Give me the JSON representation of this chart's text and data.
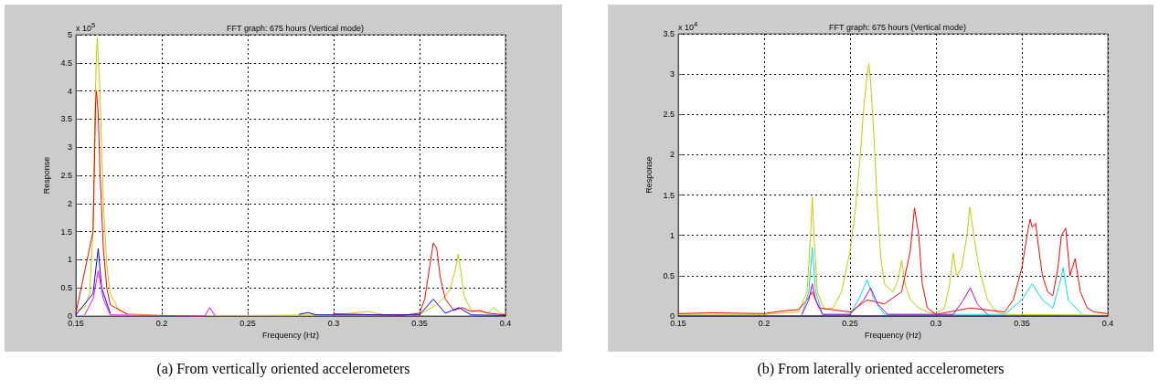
{
  "chart_data": [
    {
      "type": "line",
      "title": "FFT graph: 675 hours (Vertical mode)",
      "xlabel": "Frequency (Hz)",
      "ylabel": "Response",
      "annotations": [
        "x 10$^{5}$",
        "(a) From vertically oriented accelerometers"
      ],
      "xlim": [
        0.15,
        0.4
      ],
      "xticks": [
        0.15,
        0.2,
        0.25,
        0.3,
        0.35,
        0.4
      ],
      "ylim": [
        0,
        5
      ],
      "yticks": [
        0,
        0.5,
        1,
        1.5,
        2,
        2.5,
        3,
        3.5,
        4,
        4.5,
        5
      ],
      "grid": true,
      "marker": "none",
      "line_style": "solid",
      "series": [
        {
          "color": "#c8c800",
          "x": [
            0.15,
            0.155,
            0.158,
            0.16,
            0.161,
            0.162,
            0.1625,
            0.163,
            0.164,
            0.165,
            0.166,
            0.168,
            0.17,
            0.175,
            0.18,
            0.2,
            0.25,
            0.3,
            0.32,
            0.33,
            0.35,
            0.36,
            0.365,
            0.368,
            0.371,
            0.3725,
            0.374,
            0.376,
            0.38,
            0.39,
            0.393,
            0.397,
            0.4
          ],
          "values": [
            0.1,
            0.15,
            0.4,
            1.5,
            3.5,
            4.7,
            4.95,
            4.6,
            4,
            3,
            2,
            0.9,
            0.4,
            0.1,
            0.04,
            0.01,
            0.01,
            0.02,
            0.08,
            0.02,
            0.03,
            0.2,
            0.35,
            0.5,
            0.85,
            1.1,
            0.8,
            0.35,
            0.1,
            0.05,
            0.15,
            0.05,
            0.03
          ]
        },
        {
          "color": "#ff0000",
          "x": [
            0.15,
            0.16,
            0.161,
            0.1615,
            0.162,
            0.163,
            0.164,
            0.166,
            0.168,
            0.17,
            0.18,
            0.2,
            0.3,
            0.34,
            0.35,
            0.353,
            0.356,
            0.358,
            0.36,
            0.362,
            0.365,
            0.37,
            0.375,
            0.38,
            0.385,
            0.39,
            0.4
          ],
          "values": [
            0.05,
            1.5,
            3,
            3.8,
            4,
            3.6,
            2.6,
            1.2,
            0.5,
            0.2,
            0.03,
            null,
            0.04,
            0.01,
            0.05,
            0.3,
            0.9,
            1.3,
            1.2,
            0.7,
            0.3,
            0.1,
            0.15,
            0.08,
            0.1,
            0.05,
            0.02
          ]
        },
        {
          "color": "#0000ff",
          "x": [
            0.15,
            0.16,
            0.163,
            0.165,
            0.17,
            0.2,
            0.28,
            0.285,
            0.29,
            0.35,
            0.358,
            0.365,
            0.373,
            0.38,
            0.4
          ],
          "values": [
            0.02,
            0.4,
            1.2,
            0.5,
            0.05,
            null,
            0.03,
            0.06,
            0.02,
            0.02,
            0.3,
            0.05,
            0.15,
            0.02,
            0.01
          ]
        },
        {
          "color": "#ff00ff",
          "x": [
            0.155,
            0.16,
            0.163,
            0.166,
            0.17,
            0.225,
            0.228,
            0.231
          ],
          "values": [
            0.02,
            0.3,
            0.8,
            0.3,
            0.02,
            0,
            0.15,
            0
          ]
        }
      ]
    },
    {
      "type": "line",
      "title": "FFT graph: 675 hours (Vertical mode)",
      "xlabel": "Frequency (Hz)",
      "ylabel": "Response",
      "annotations": [
        "x 10$^{4}$",
        "(b) From laterally oriented accelerometers"
      ],
      "xlim": [
        0.15,
        0.4
      ],
      "xticks": [
        0.15,
        0.2,
        0.25,
        0.3,
        0.35,
        0.4
      ],
      "ylim": [
        0,
        3.5
      ],
      "yticks": [
        0,
        0.5,
        1,
        1.5,
        2,
        2.5,
        3,
        3.5
      ],
      "grid": true,
      "marker": "none",
      "line_style": "solid",
      "series": [
        {
          "color": "#c8c800",
          "x": [
            0.15,
            0.2,
            0.22,
            0.225,
            0.227,
            0.228,
            0.229,
            0.231,
            0.235,
            0.24,
            0.245,
            0.25,
            0.253,
            0.256,
            0.258,
            0.26,
            0.261,
            0.262,
            0.264,
            0.266,
            0.268,
            0.27,
            0.272,
            0.275,
            0.278,
            0.28,
            0.282,
            0.285,
            0.29,
            0.295,
            0.3,
            0.305,
            0.308,
            0.31,
            0.312,
            0.315,
            0.318,
            0.3197,
            0.322,
            0.325,
            0.33,
            0.335,
            0.34,
            0.4
          ],
          "values": [
            0.02,
            0.02,
            0.05,
            0.3,
            1,
            1.47,
            1,
            0.3,
            0.08,
            0.1,
            0.3,
            0.8,
            1.3,
            2,
            2.6,
            3,
            3.13,
            2.9,
            2.2,
            1.3,
            0.7,
            0.4,
            0.35,
            0.3,
            0.45,
            0.69,
            0.4,
            0.2,
            0.1,
            0.05,
            0.03,
            0.1,
            0.4,
            0.78,
            0.5,
            0.6,
            1,
            1.35,
            1,
            0.6,
            0.2,
            0.05,
            0.02,
            0.01
          ]
        },
        {
          "color": "#ff0000",
          "x": [
            0.15,
            0.17,
            0.2,
            0.21,
            0.22,
            0.225,
            0.228,
            0.232,
            0.25,
            0.26,
            0.27,
            0.28,
            0.285,
            0.2875,
            0.29,
            0.292,
            0.295,
            0.3,
            0.32,
            0.34,
            0.345,
            0.35,
            0.353,
            0.3548,
            0.356,
            0.358,
            0.36,
            0.362,
            0.365,
            0.368,
            0.371,
            0.373,
            0.3755,
            0.378,
            0.381,
            0.384,
            0.388,
            0.392,
            0.4
          ],
          "values": [
            0.03,
            0.04,
            0.03,
            0.06,
            0.08,
            0.2,
            0.3,
            0.1,
            0.05,
            0.2,
            0.15,
            0.3,
            0.8,
            1.34,
            1,
            0.4,
            0.1,
            0.02,
            0.1,
            0.05,
            0.2,
            0.6,
            1,
            1.2,
            1.1,
            1.15,
            0.8,
            0.5,
            0.3,
            0.25,
            0.6,
            1,
            1.09,
            0.5,
            0.71,
            0.3,
            0.1,
            0.05,
            0.03
          ]
        },
        {
          "color": "#00e0e0",
          "x": [
            0.222,
            0.226,
            0.228,
            0.23,
            0.234,
            0.25,
            0.256,
            0.26,
            0.264,
            0.27,
            0.34,
            0.35,
            0.356,
            0.362,
            0.368,
            0.372,
            0.374,
            0.377,
            0.385
          ],
          "values": [
            0.02,
            0.3,
            0.85,
            0.3,
            0.02,
            0.02,
            0.25,
            0.45,
            0.2,
            0.02,
            0.02,
            0.2,
            0.4,
            0.2,
            0.1,
            0.4,
            0.6,
            0.2,
            0.02
          ]
        },
        {
          "color": "#c000c0",
          "x": [
            0.222,
            0.226,
            0.228,
            0.23,
            0.234,
            0.25,
            0.258,
            0.262,
            0.266,
            0.272,
            0.31,
            0.316,
            0.32,
            0.324,
            0.33
          ],
          "values": [
            0.02,
            0.2,
            0.4,
            0.2,
            0.02,
            0.02,
            0.2,
            0.35,
            0.15,
            0.02,
            0.02,
            0.2,
            0.35,
            0.15,
            0.02
          ]
        },
        {
          "color": "#000080",
          "x": [
            0.15,
            0.25,
            0.3,
            0.4
          ],
          "values": [
            0,
            0,
            0,
            0
          ]
        }
      ]
    }
  ]
}
